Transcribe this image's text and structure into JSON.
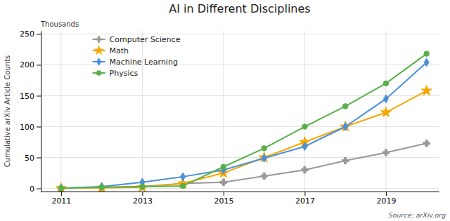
{
  "chart_data": {
    "type": "line",
    "title": "AI in Different Disciplines",
    "ylabel": "Cumulative arXiv Article Counts",
    "annotations": [
      "Thousands",
      "Source: arXiv.org"
    ],
    "x": [
      2011,
      2012,
      2013,
      2014,
      2015,
      2016,
      2017,
      2018,
      2019,
      2020
    ],
    "xlim": [
      2010.5,
      2020.3
    ],
    "xticks": [
      2011,
      2013,
      2015,
      2017,
      2019
    ],
    "ylim": [
      -5,
      255
    ],
    "yticks": [
      0,
      50,
      100,
      150,
      200,
      250
    ],
    "grid": true,
    "legend": "upper left",
    "series": [
      {
        "name": "Computer Science",
        "color": "#999999",
        "marker": "plus",
        "values": [
          0.5,
          1.5,
          3,
          8,
          10,
          20,
          30,
          45,
          58,
          73
        ]
      },
      {
        "name": "Math",
        "color": "#f5a800",
        "marker": "star",
        "values": [
          0.5,
          1,
          2,
          8,
          25,
          50,
          75,
          100,
          123,
          158
        ]
      },
      {
        "name": "Machine Learning",
        "color": "#4a90d9",
        "marker": "diamond",
        "values": [
          0.5,
          3,
          10,
          19,
          30,
          49,
          68,
          100,
          145,
          204
        ]
      },
      {
        "name": "Physics",
        "color": "#5aaf4a",
        "marker": "circle",
        "values": [
          0.5,
          2,
          3,
          4,
          35,
          65,
          100,
          133,
          170,
          218
        ]
      }
    ]
  }
}
